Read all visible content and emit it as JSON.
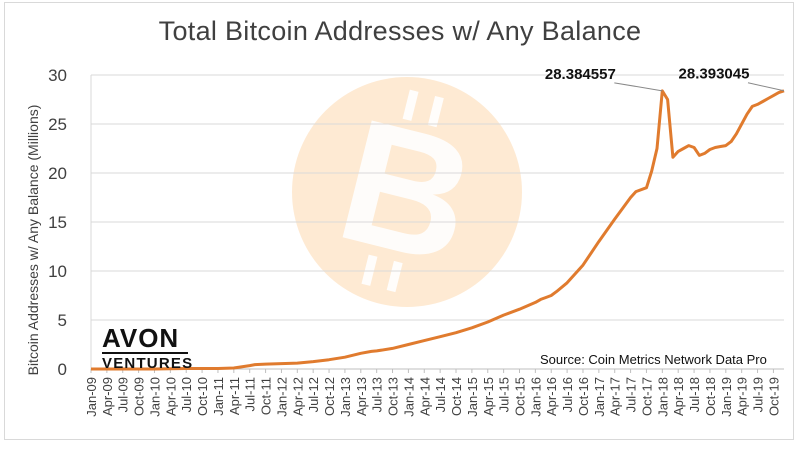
{
  "chart_data": {
    "type": "line",
    "title": "Total Bitcoin Addresses w/ Any Balance",
    "ylabel": "Bitcoin Addresses w/ Any Balance (Millions)",
    "xlabel": "",
    "ylim": [
      0,
      30
    ],
    "yticks": [
      0,
      5,
      10,
      15,
      20,
      25,
      30
    ],
    "xticks": [
      "Jan-09",
      "Apr-09",
      "Jul-09",
      "Oct-09",
      "Jan-10",
      "Apr-10",
      "Jul-10",
      "Oct-10",
      "Jan-11",
      "Apr-11",
      "Jul-11",
      "Oct-11",
      "Jan-12",
      "Apr-12",
      "Jul-12",
      "Oct-12",
      "Jan-13",
      "Apr-13",
      "Jul-13",
      "Oct-13",
      "Jan-14",
      "Apr-14",
      "Jul-14",
      "Oct-14",
      "Jan-15",
      "Apr-15",
      "Jul-15",
      "Oct-15",
      "Jan-16",
      "Apr-16",
      "Jul-16",
      "Oct-16",
      "Jan-17",
      "Apr-17",
      "Jul-17",
      "Oct-17",
      "Jan-18",
      "Apr-18",
      "Jul-18",
      "Oct-18",
      "Jan-19",
      "Apr-19",
      "Jul-19",
      "Oct-19"
    ],
    "grid": "horizontal",
    "line_color": "#e07b2e",
    "series": [
      {
        "x": [
          "Jan-09",
          "Jul-09",
          "Jan-10",
          "Jul-10",
          "Jan-11",
          "Apr-11",
          "Jul-11",
          "Aug-11",
          "Oct-11",
          "Jan-12",
          "Apr-12",
          "Jul-12",
          "Oct-12",
          "Jan-13",
          "Apr-13",
          "Jun-13",
          "Jul-13",
          "Oct-13",
          "Jan-14",
          "Apr-14",
          "Jul-14",
          "Oct-14",
          "Jan-15",
          "Apr-15",
          "Jul-15",
          "Oct-15",
          "Jan-16",
          "Feb-16",
          "Mar-16",
          "Apr-16",
          "May-16",
          "Jul-16",
          "Oct-16",
          "Jan-17",
          "Apr-17",
          "Jul-17",
          "Aug-17",
          "Oct-17",
          "Nov-17",
          "Dec-17",
          "Jan-18",
          "Feb-18",
          "Mar-18",
          "Apr-18",
          "May-18",
          "Jun-18",
          "Jul-18",
          "Aug-18",
          "Sep-18",
          "Oct-18",
          "Nov-18",
          "Dec-18",
          "Jan-19",
          "Feb-19",
          "Mar-19",
          "Apr-19",
          "May-19",
          "Jun-19",
          "Jul-19",
          "Aug-19",
          "Sep-19",
          "Oct-19",
          "Nov-19",
          "Dec-19"
        ],
        "values": [
          0,
          0,
          0,
          0.05,
          0.05,
          0.1,
          0.35,
          0.45,
          0.5,
          0.55,
          0.6,
          0.75,
          0.95,
          1.2,
          1.6,
          1.8,
          1.85,
          2.1,
          2.5,
          2.9,
          3.3,
          3.7,
          4.2,
          4.8,
          5.5,
          6.1,
          6.8,
          7.1,
          7.3,
          7.5,
          7.9,
          8.8,
          10.6,
          13.0,
          15.3,
          17.5,
          18.1,
          18.5,
          20.2,
          22.5,
          28.38,
          27.5,
          21.6,
          22.2,
          22.5,
          22.8,
          22.6,
          21.8,
          22.0,
          22.4,
          22.6,
          22.7,
          22.8,
          23.2,
          24.0,
          25.0,
          26.0,
          26.8,
          27.0,
          27.3,
          27.6,
          27.9,
          28.2,
          28.39
        ]
      }
    ],
    "annotations": [
      {
        "text": "28.384557",
        "x": "Jan-18",
        "y": 28.384557
      },
      {
        "text": "28.393045",
        "x": "Dec-19",
        "y": 28.393045
      }
    ]
  },
  "logo": {
    "main": "AVON",
    "sub": "VENTURES"
  },
  "source_note": "Source: Coin Metrics Network Data Pro",
  "colors": {
    "line": "#e07b2e",
    "watermark_circle": "#fde3c4",
    "grid": "#d9d9d9",
    "axis_text": "#404040"
  },
  "watermark_icon": "bitcoin-logo-icon"
}
